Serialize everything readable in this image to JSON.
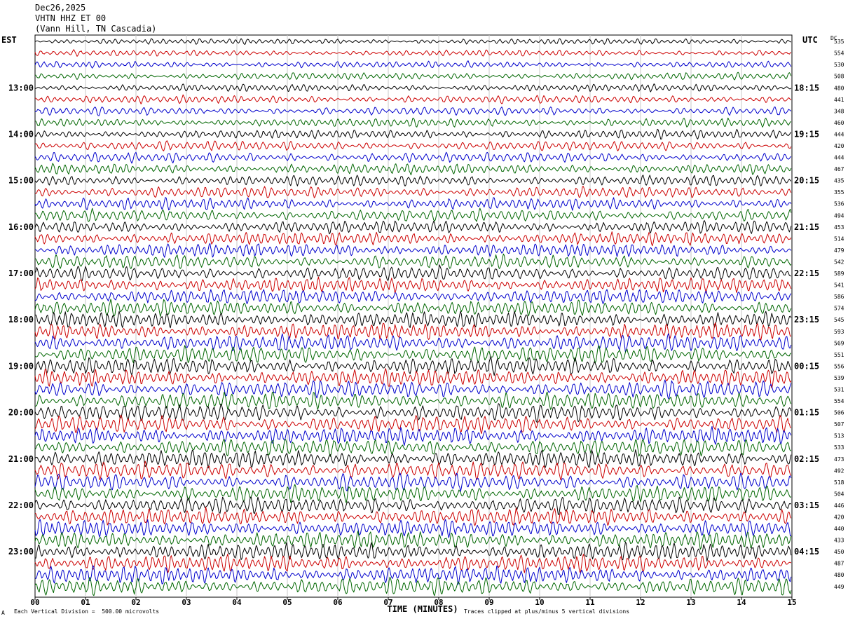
{
  "header": {
    "date": "Dec26,2025",
    "station": "VHTN HHZ ET 00",
    "location": "(Vann Hill, TN Cascadia)"
  },
  "left_timezone": "EST",
  "right_timezone": "UTC",
  "dc_label": "DC",
  "footer": {
    "scale_note": "Each Vertical Division =  500.00 microvolts",
    "clip_note": "Traces clipped at plus/minus 5 vertical divisions",
    "corner_mark": "A"
  },
  "chart_data": {
    "type": "line",
    "title": "",
    "xlabel": "TIME (MINUTES)",
    "xlim": [
      0,
      15
    ],
    "x_ticks": [
      "00",
      "01",
      "02",
      "03",
      "04",
      "05",
      "06",
      "07",
      "08",
      "09",
      "10",
      "11",
      "12",
      "13",
      "14",
      "15"
    ],
    "left_hour_labels": [
      "13:00",
      "14:00",
      "15:00",
      "16:00",
      "17:00",
      "18:00",
      "19:00",
      "20:00",
      "21:00",
      "22:00",
      "23:00"
    ],
    "right_hour_labels": [
      "18:15",
      "19:15",
      "20:15",
      "21:15",
      "22:15",
      "23:15",
      "00:15",
      "01:15",
      "02:15",
      "03:15",
      "04:15"
    ],
    "trace_colors": [
      "#000000",
      "#cc0000",
      "#0000cc",
      "#006600"
    ],
    "traces_per_hour": 4,
    "dc_offsets": [
      535,
      554,
      530,
      508,
      480,
      441,
      348,
      460,
      444,
      420,
      444,
      467,
      435,
      355,
      536,
      494,
      453,
      514,
      479,
      542,
      589,
      541,
      586,
      574,
      545,
      593,
      569,
      551,
      556,
      539,
      531,
      554,
      506,
      507,
      513,
      533,
      473,
      492,
      518,
      504,
      446,
      420,
      440,
      433,
      450,
      487,
      480,
      449
    ]
  }
}
